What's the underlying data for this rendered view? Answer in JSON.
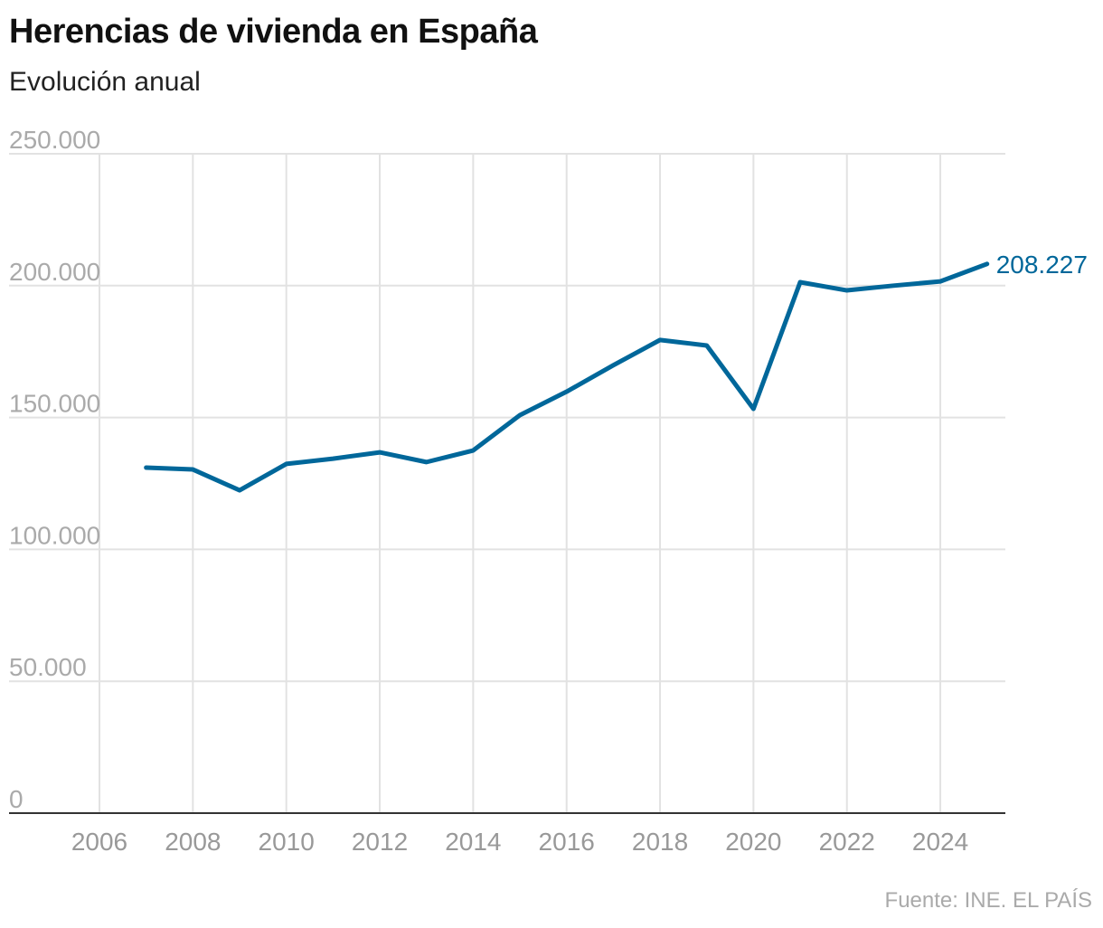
{
  "title": "Herencias de vivienda en España",
  "subtitle": "Evolución anual",
  "source": "Fuente: INE. EL PAÍS",
  "chart_data": {
    "type": "line",
    "title": "Herencias de vivienda en España",
    "subtitle": "Evolución anual",
    "xlabel": "",
    "ylabel": "",
    "xlim": [
      2005,
      2026
    ],
    "ylim": [
      0,
      250000
    ],
    "grid": true,
    "line_color": "#00679a",
    "x_ticks": [
      "2006",
      "2008",
      "2010",
      "2012",
      "2014",
      "2016",
      "2018",
      "2020",
      "2022",
      "2024"
    ],
    "y_ticks": [
      {
        "value": 0,
        "label": "0"
      },
      {
        "value": 50000,
        "label": "50.000"
      },
      {
        "value": 100000,
        "label": "100.000"
      },
      {
        "value": 150000,
        "label": "150.000"
      },
      {
        "value": 200000,
        "label": "200.000"
      },
      {
        "value": 250000,
        "label": "250.000"
      }
    ],
    "series": [
      {
        "x": [
          2007,
          2008,
          2009,
          2010,
          2011,
          2012,
          2013,
          2014,
          2015,
          2016,
          2017,
          2018,
          2019,
          2020,
          2021,
          2022,
          2023,
          2024,
          2025
        ],
        "values": [
          131000,
          130300,
          122400,
          132400,
          134400,
          136800,
          133100,
          137500,
          150900,
          159800,
          169800,
          179400,
          177300,
          153300,
          201300,
          198200,
          200000,
          201600,
          208227
        ]
      }
    ],
    "annotations": [
      {
        "x": 2025,
        "y": 208227,
        "label": "208.227"
      }
    ]
  }
}
